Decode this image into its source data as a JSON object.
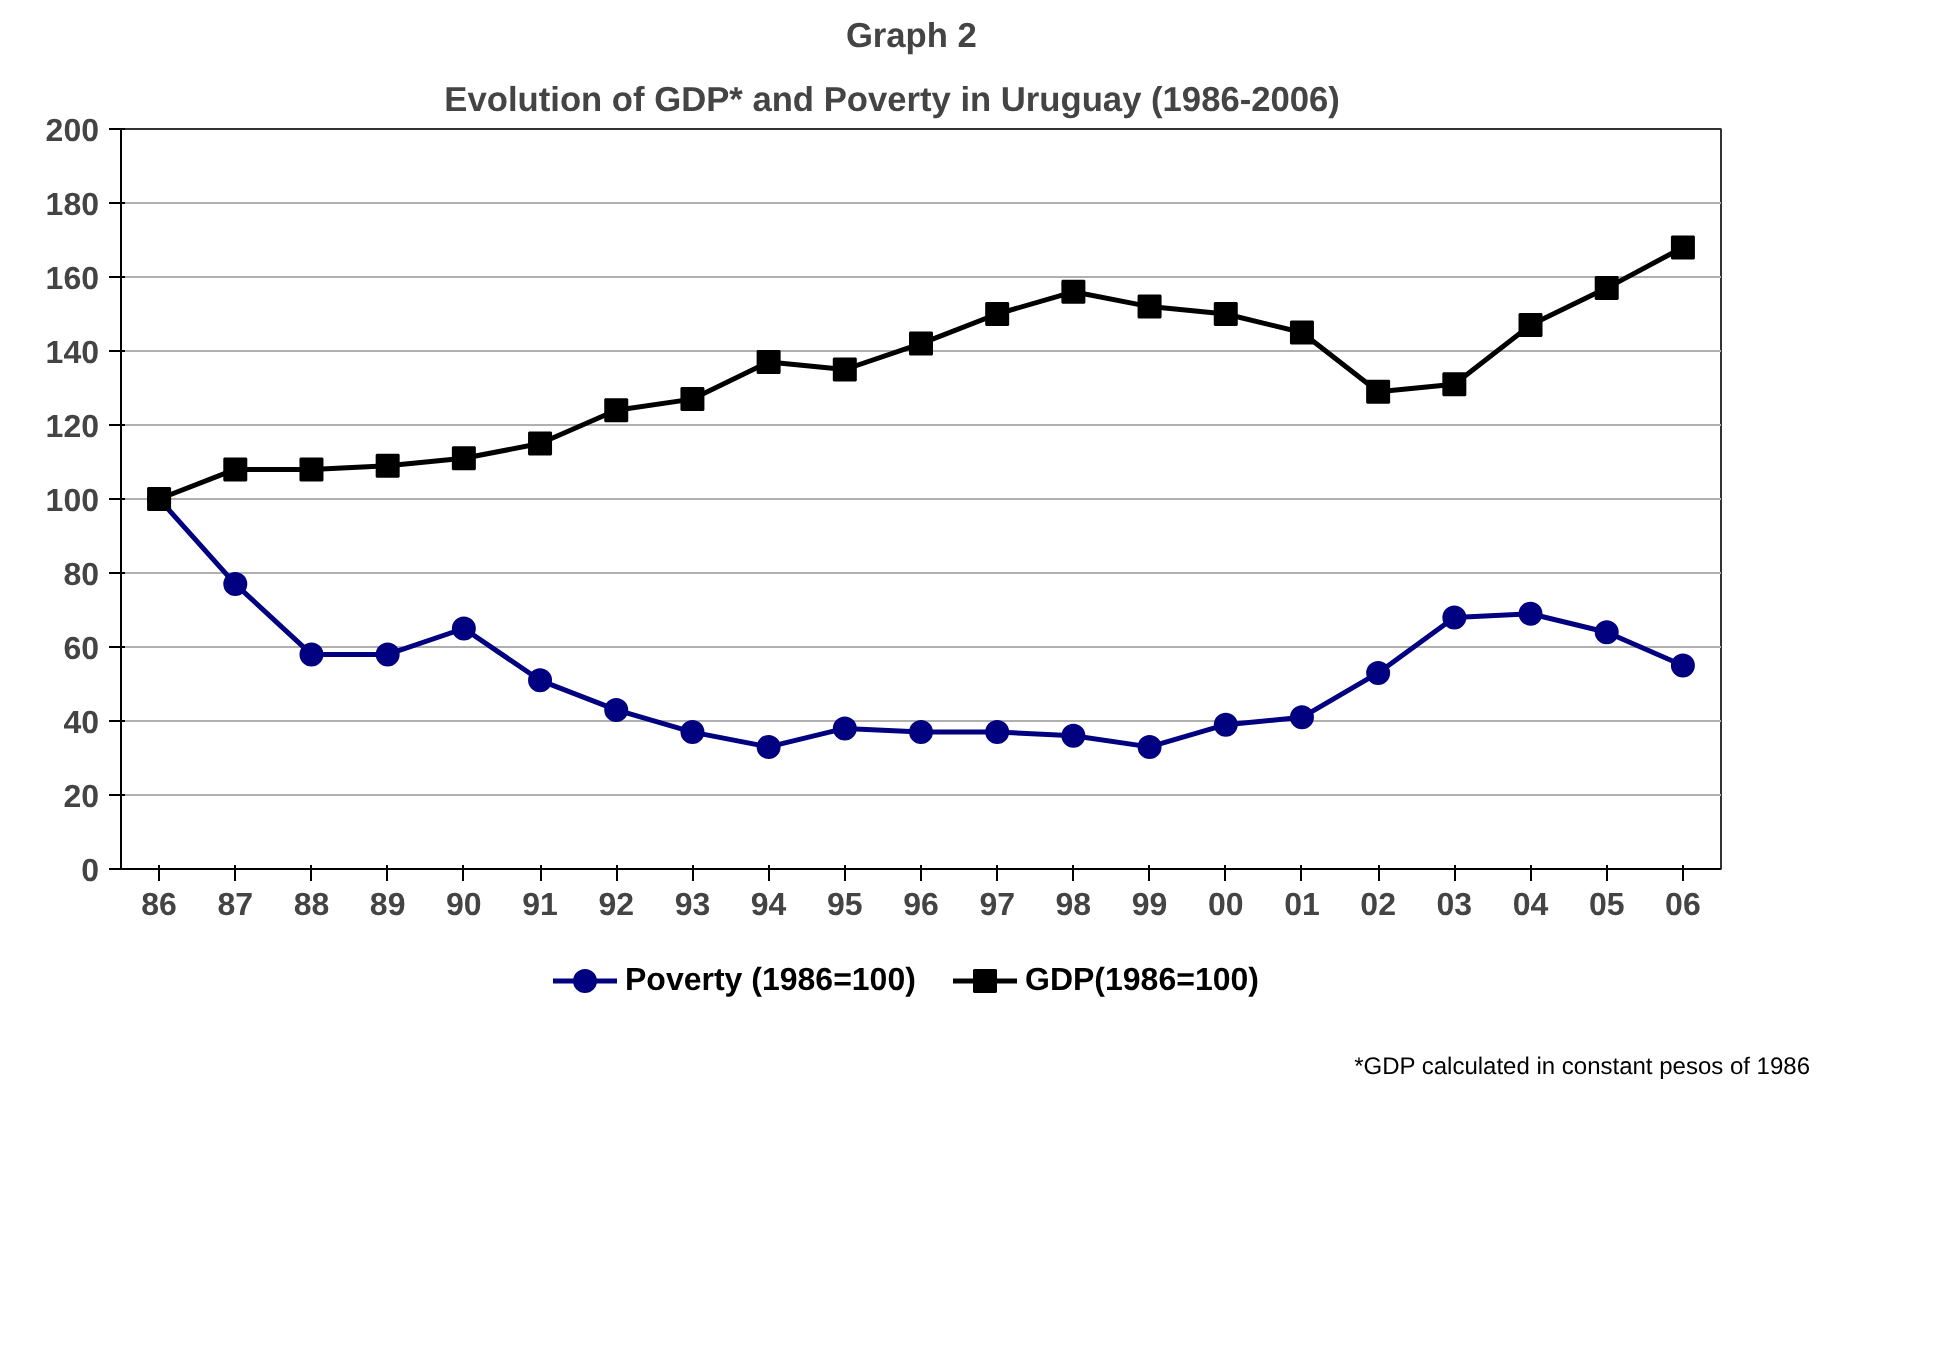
{
  "chart_data": {
    "type": "line",
    "title": "Graph   2",
    "subtitle": "Evolution of GDP* and Poverty in Uruguay       (1986-2006)",
    "categories": [
      "86",
      "87",
      "88",
      "89",
      "90",
      "91",
      "92",
      "93",
      "94",
      "95",
      "96",
      "97",
      "98",
      "99",
      "00",
      "01",
      "02",
      "03",
      "04",
      "05",
      "06"
    ],
    "series": [
      {
        "name": "Poverty (1986=100)",
        "color": "#000080",
        "marker": "circle",
        "values": [
          100,
          77,
          58,
          58,
          65,
          51,
          43,
          37,
          33,
          38,
          37,
          37,
          36,
          33,
          39,
          41,
          53,
          68,
          69,
          64,
          55
        ]
      },
      {
        "name": "GDP(1986=100)",
        "color": "#000000",
        "marker": "square",
        "values": [
          100,
          108,
          108,
          109,
          111,
          115,
          124,
          127,
          137,
          135,
          142,
          150,
          156,
          152,
          150,
          145,
          129,
          131,
          147,
          157,
          168
        ]
      }
    ],
    "ylim": [
      0,
      200
    ],
    "yticks": [
      0,
      20,
      40,
      60,
      80,
      100,
      120,
      140,
      160,
      180,
      200
    ],
    "grid": "y",
    "legend": "bottom",
    "annotations": [
      "*GDP  calculated in constant pesos of 1986"
    ]
  }
}
